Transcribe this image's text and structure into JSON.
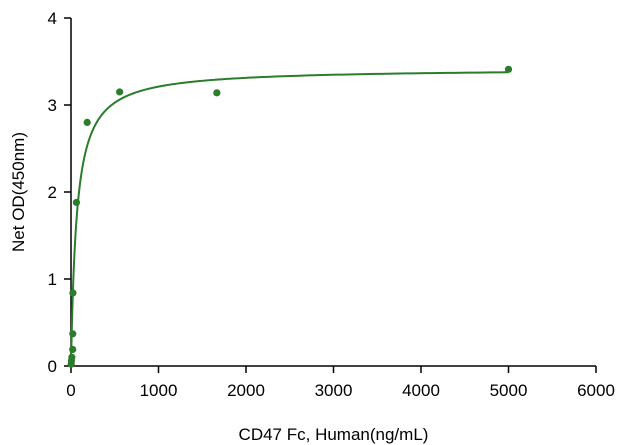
{
  "chart_data": {
    "type": "scatter",
    "title": "",
    "xlabel": "CD47 Fc, Human(ng/mL)",
    "ylabel": "Net OD(450nm)",
    "xlim": [
      0,
      6000
    ],
    "ylim": [
      0,
      4
    ],
    "x_ticks": [
      0,
      1000,
      2000,
      3000,
      4000,
      5000,
      6000
    ],
    "y_ticks": [
      0,
      1,
      2,
      3,
      4
    ],
    "grid": false,
    "legend": "none",
    "point_color": "#2a7d2a",
    "curve_color": "#2a7d2a",
    "points": [
      {
        "x": 2.4,
        "y": 0.02
      },
      {
        "x": 4.9,
        "y": 0.06
      },
      {
        "x": 9.8,
        "y": 0.1
      },
      {
        "x": 19.5,
        "y": 0.19
      },
      {
        "x": 20.6,
        "y": 0.37
      },
      {
        "x": 22,
        "y": 0.84
      },
      {
        "x": 62,
        "y": 1.88
      },
      {
        "x": 185,
        "y": 2.8
      },
      {
        "x": 556,
        "y": 3.15
      },
      {
        "x": 1667,
        "y": 3.14
      },
      {
        "x": 5000,
        "y": 3.41
      }
    ],
    "fit_curve": {
      "model": "one-site binding",
      "bmax": 3.42,
      "kd": 65
    }
  }
}
